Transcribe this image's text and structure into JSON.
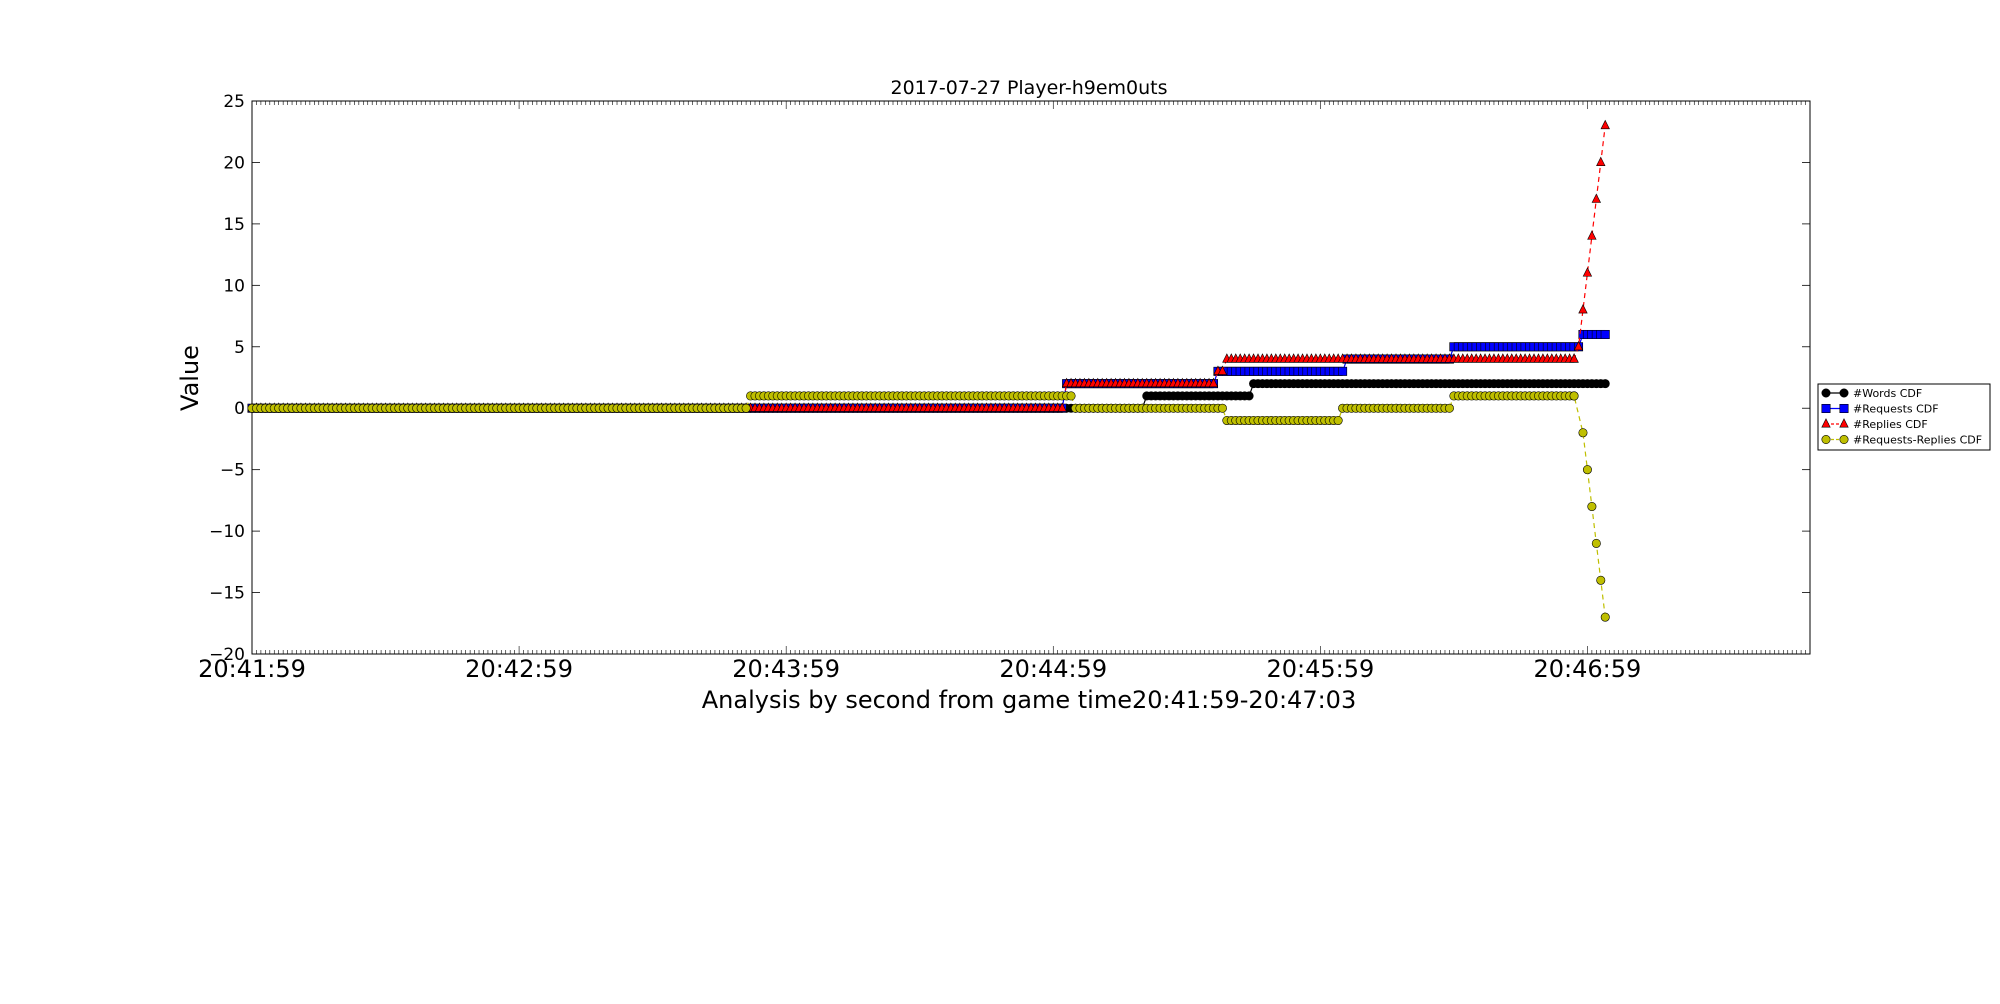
{
  "chart_data": {
    "type": "line",
    "title": "2017-07-27 Player-h9em0uts",
    "xlabel": "Analysis by second from game time20:41:59-20:47:03",
    "ylabel": "Value",
    "xlim": [
      0,
      350
    ],
    "ylim": [
      -20,
      25
    ],
    "yticks": [
      25,
      20,
      15,
      10,
      5,
      0,
      -5,
      -10,
      -15,
      -20
    ],
    "ytick_labels": [
      "25",
      "20",
      "15",
      "10",
      "5",
      "0",
      "−5",
      "−10",
      "−15",
      "−20"
    ],
    "xticks": [
      0,
      60,
      120,
      180,
      240,
      300
    ],
    "xtick_labels": [
      "20:41:59",
      "20:42:59",
      "20:43:59",
      "20:44:59",
      "20:45:59",
      "20:46:59"
    ],
    "grid": false,
    "legend": "outside-right",
    "series": [
      {
        "name": "#Words CDF",
        "color": "#000000",
        "marker": "circle",
        "linestyle": "solid",
        "segments": [
          [
            0,
            183,
            0
          ],
          [
            184,
            200,
            0
          ],
          [
            201,
            224,
            1
          ],
          [
            225,
            304,
            2
          ]
        ]
      },
      {
        "name": "#Requests CDF",
        "color": "#0000ff",
        "marker": "square",
        "linestyle": "solid",
        "segments": [
          [
            0,
            111,
            0
          ],
          [
            112,
            182,
            0
          ],
          [
            183,
            216,
            2
          ],
          [
            217,
            245,
            3
          ],
          [
            246,
            269,
            4
          ],
          [
            270,
            298,
            5
          ],
          [
            299,
            304,
            6
          ]
        ]
      },
      {
        "name": "#Replies CDF",
        "color": "#ff0000",
        "marker": "triangle",
        "linestyle": "dashed",
        "segments": [
          [
            0,
            111,
            0
          ],
          [
            112,
            182,
            0
          ],
          [
            183,
            216,
            2
          ],
          [
            217,
            218,
            3
          ],
          [
            219,
            297,
            4
          ]
        ],
        "tail": [
          [
            297,
            4
          ],
          [
            298,
            5
          ],
          [
            299,
            8
          ],
          [
            300,
            11
          ],
          [
            301,
            14
          ],
          [
            302,
            17
          ],
          [
            303,
            20
          ],
          [
            304,
            23
          ]
        ]
      },
      {
        "name": "#Requests-Replies CDF",
        "color": "#bfbf00",
        "marker": "circle",
        "linestyle": "dashed",
        "segments": [
          [
            0,
            111,
            0
          ],
          [
            112,
            184,
            1
          ],
          [
            185,
            218,
            0
          ],
          [
            219,
            244,
            -1
          ],
          [
            245,
            269,
            0
          ],
          [
            270,
            297,
            1
          ]
        ],
        "tail": [
          [
            297,
            1
          ],
          [
            299,
            -2
          ],
          [
            300,
            -5
          ],
          [
            301,
            -8
          ],
          [
            302,
            -11
          ],
          [
            303,
            -14
          ],
          [
            304,
            -17
          ]
        ]
      }
    ]
  }
}
